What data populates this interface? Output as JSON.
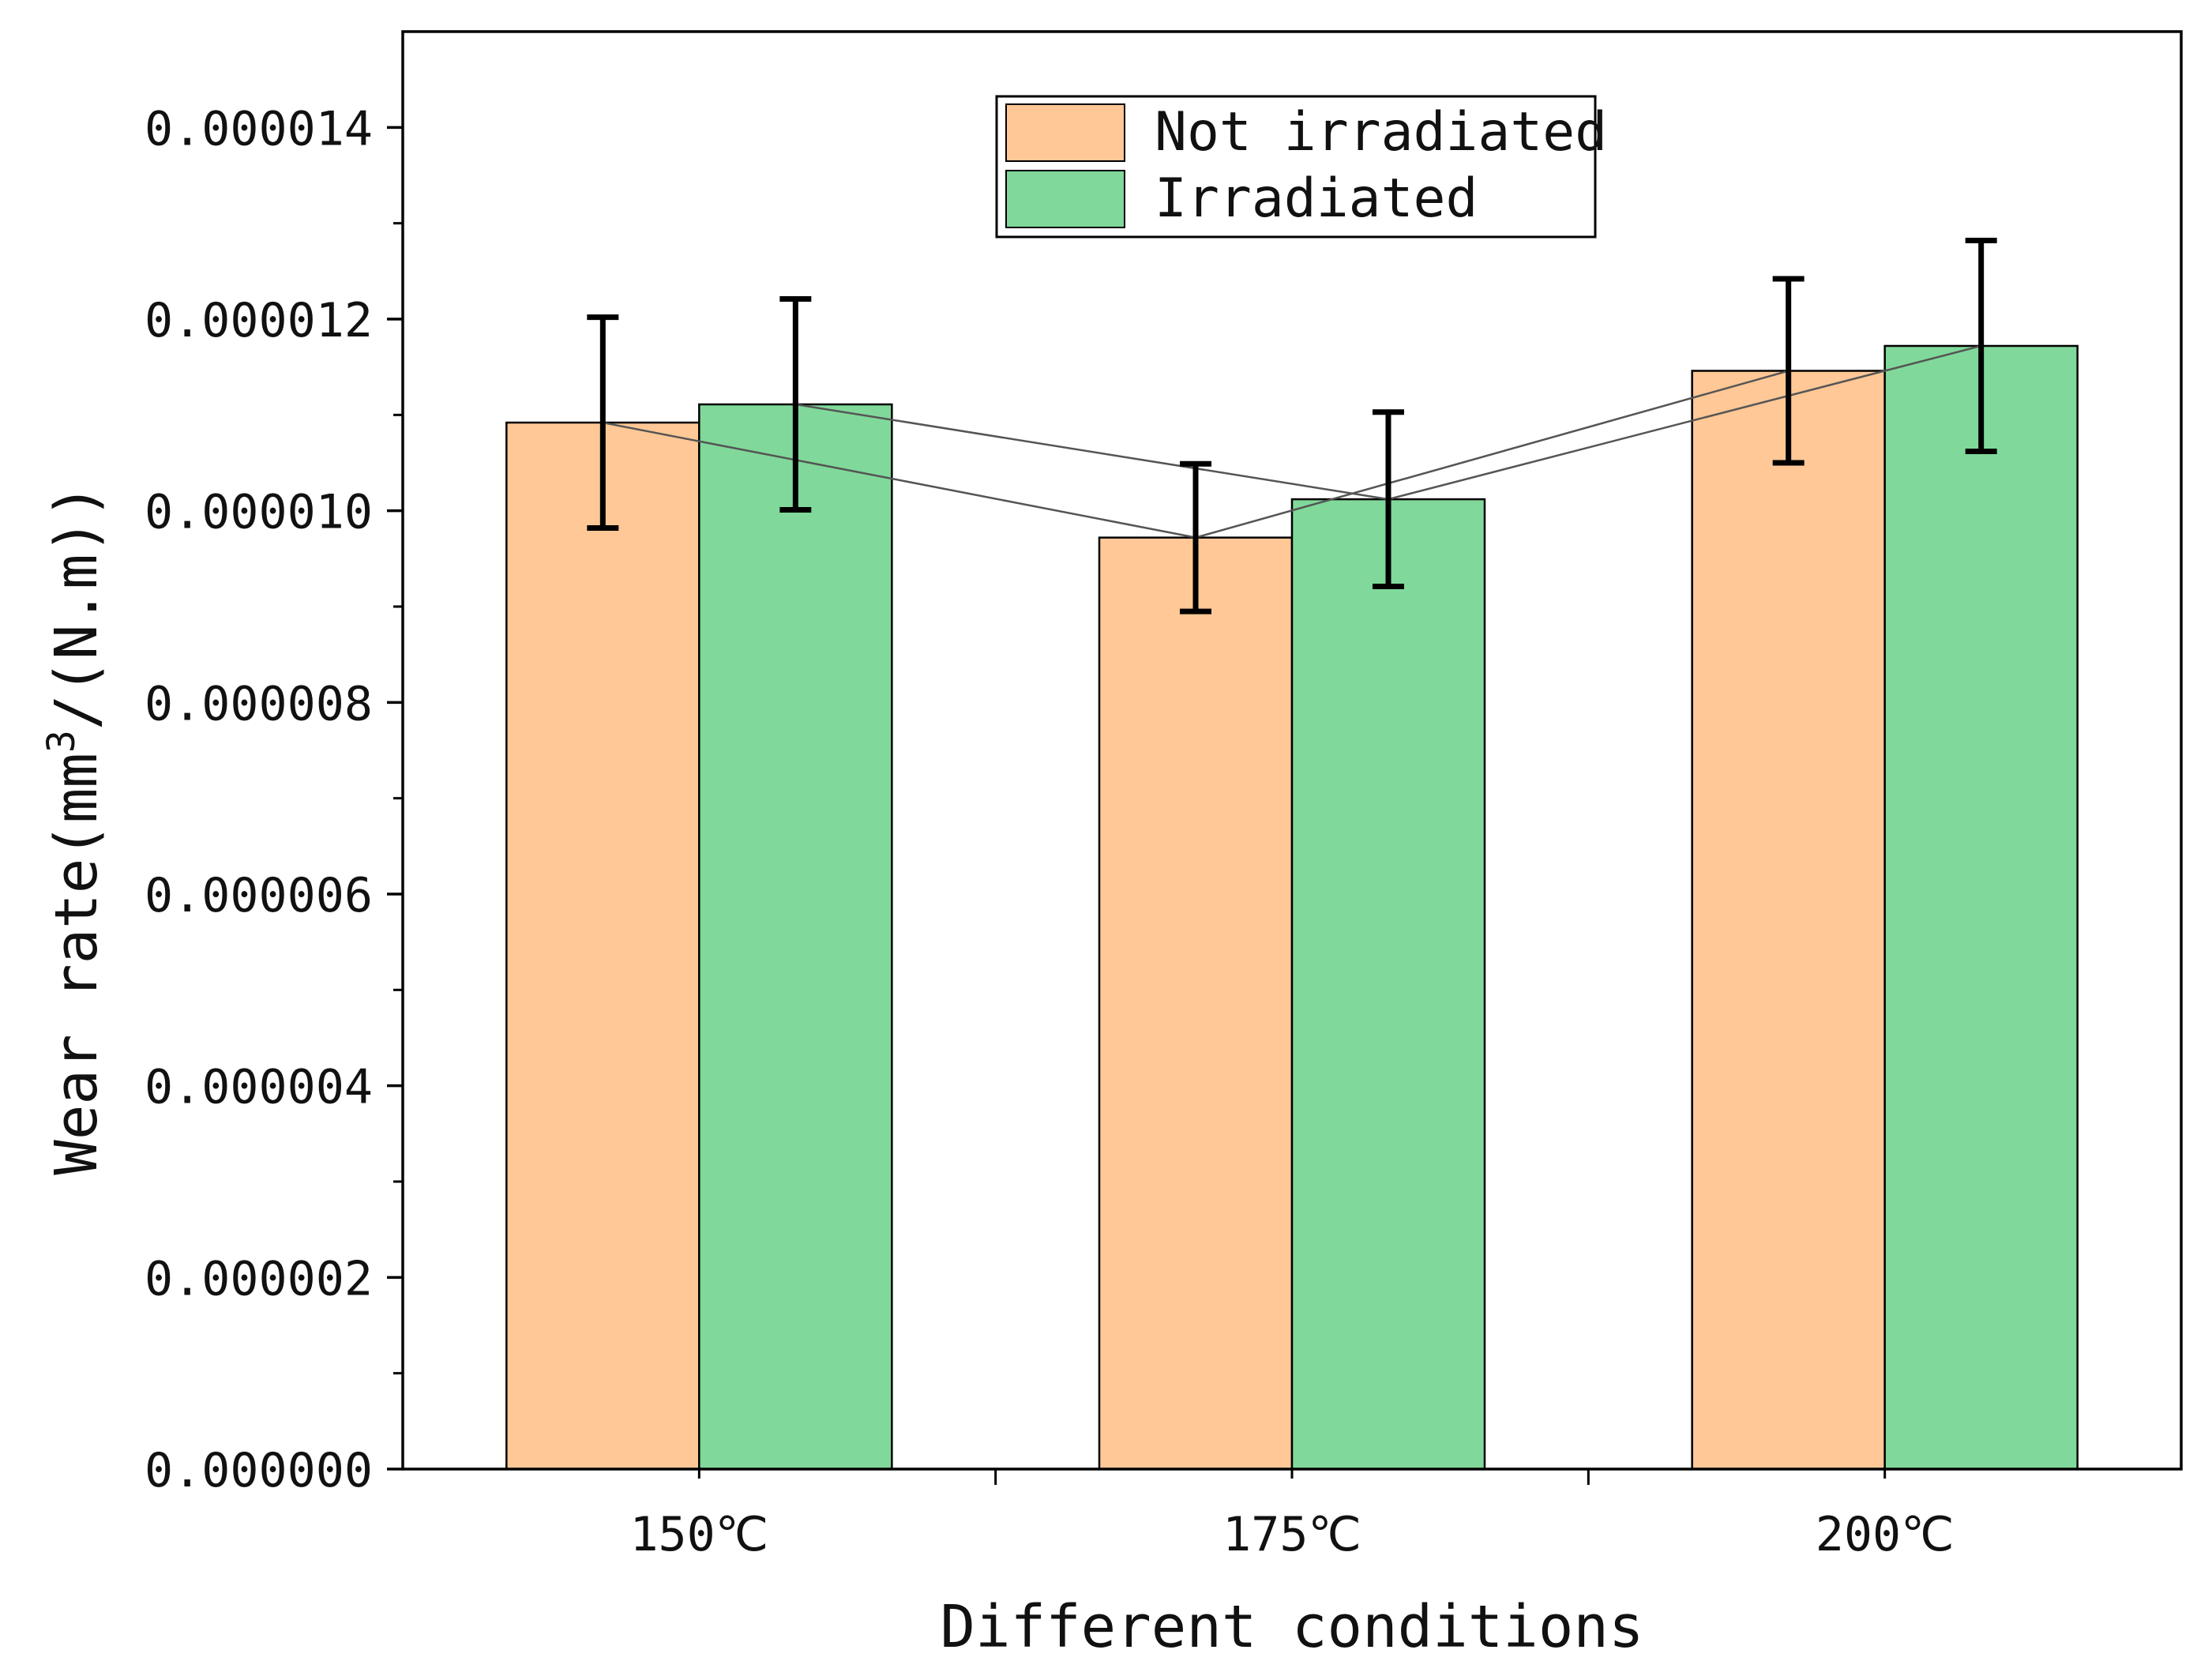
{
  "chart_data": {
    "type": "bar",
    "title": "",
    "xlabel": "Different conditions",
    "ylabel": {
      "prefix": "Wear rate(mm",
      "superscript": "3",
      "suffix": "/(N.m))"
    },
    "categories": [
      "150℃",
      "175℃",
      "200℃"
    ],
    "ylim": [
      0,
      1.5e-05
    ],
    "yticks": [
      {
        "value": 0.0,
        "label": "0.000000"
      },
      {
        "value": 2e-06,
        "label": "0.000002"
      },
      {
        "value": 4e-06,
        "label": "0.000004"
      },
      {
        "value": 6e-06,
        "label": "0.000006"
      },
      {
        "value": 8e-06,
        "label": "0.000008"
      },
      {
        "value": 1e-05,
        "label": "0.000010"
      },
      {
        "value": 1.2e-05,
        "label": "0.000012"
      },
      {
        "value": 1.4e-05,
        "label": "0.000014"
      }
    ],
    "series": [
      {
        "name": "Not irradiated",
        "color": "#FFC896",
        "values": [
          1.092e-05,
          9.72e-06,
          1.146e-05
        ],
        "errors": [
          1.1e-06,
          7.7e-07,
          9.6e-07
        ]
      },
      {
        "name": "Irradiated",
        "color": "#80D99A",
        "values": [
          1.111e-05,
          1.012e-05,
          1.172e-05
        ],
        "errors": [
          1.1e-06,
          9.1e-07,
          1.1e-06
        ]
      }
    ],
    "legend": {
      "position": "top-center"
    },
    "connecting_lines": true,
    "grid": false
  }
}
